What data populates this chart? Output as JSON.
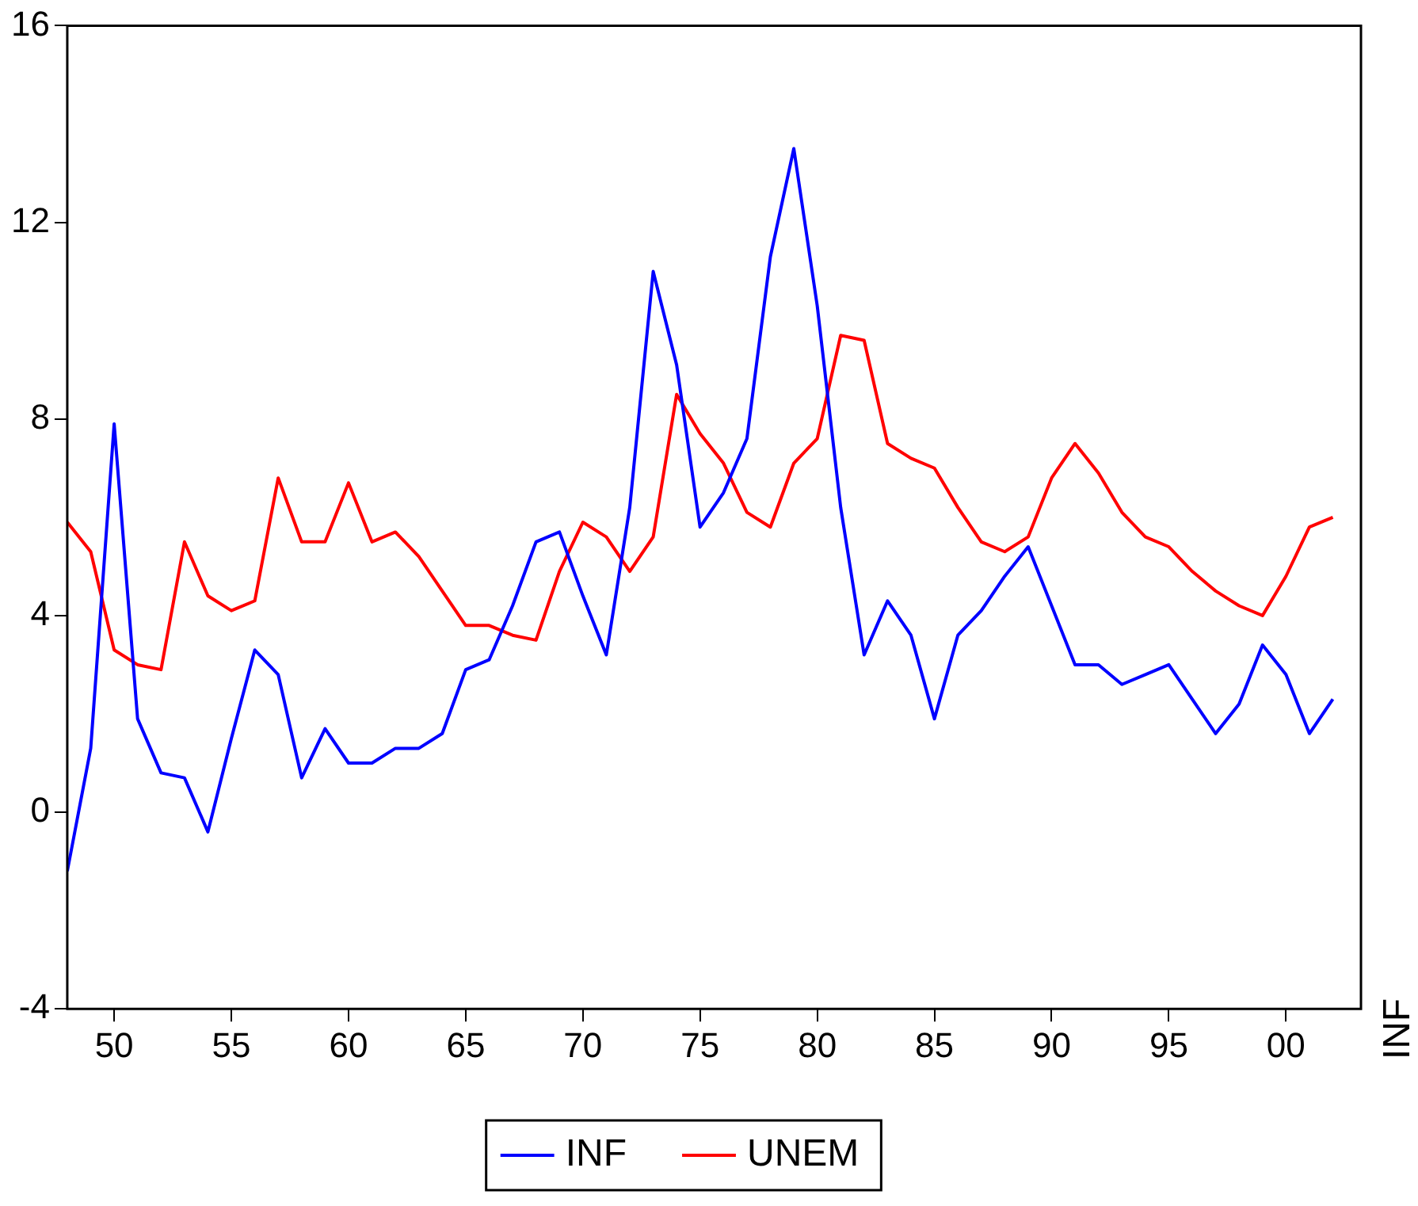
{
  "chart_data": {
    "type": "line",
    "ylabel": "INF",
    "x": [
      1948,
      1949,
      1950,
      1951,
      1952,
      1953,
      1954,
      1955,
      1956,
      1957,
      1958,
      1959,
      1960,
      1961,
      1962,
      1963,
      1964,
      1965,
      1966,
      1967,
      1968,
      1969,
      1970,
      1971,
      1972,
      1973,
      1974,
      1975,
      1976,
      1977,
      1978,
      1979,
      1980,
      1981,
      1982,
      1983,
      1984,
      1985,
      1986,
      1987,
      1988,
      1989,
      1990,
      1991,
      1992,
      1993,
      1994,
      1995,
      1996,
      1997,
      1998,
      1999,
      2000,
      2001,
      2002
    ],
    "series": [
      {
        "name": "INF",
        "color": "#0000ff",
        "values": [
          -1.2,
          1.3,
          7.9,
          1.9,
          0.8,
          0.7,
          -0.4,
          1.5,
          3.3,
          2.8,
          0.7,
          1.7,
          1.0,
          1.0,
          1.3,
          1.3,
          1.6,
          2.9,
          3.1,
          4.2,
          5.5,
          5.7,
          4.4,
          3.2,
          6.2,
          11.0,
          9.1,
          5.8,
          6.5,
          7.6,
          11.3,
          13.5,
          10.3,
          6.2,
          3.2,
          4.3,
          3.6,
          1.9,
          3.6,
          4.1,
          4.8,
          5.4,
          4.2,
          3.0,
          3.0,
          2.6,
          2.8,
          3.0,
          2.3,
          1.6,
          2.2,
          3.4,
          2.8,
          1.6,
          2.3
        ]
      },
      {
        "name": "UNEM",
        "color": "#ff0000",
        "values": [
          5.9,
          5.3,
          3.3,
          3.0,
          2.9,
          5.5,
          4.4,
          4.1,
          4.3,
          6.8,
          5.5,
          5.5,
          6.7,
          5.5,
          5.7,
          5.2,
          4.5,
          3.8,
          3.8,
          3.6,
          3.5,
          4.9,
          5.9,
          5.6,
          4.9,
          5.6,
          8.5,
          7.7,
          7.1,
          6.1,
          5.8,
          7.1,
          7.6,
          9.7,
          9.6,
          7.5,
          7.2,
          7.0,
          6.2,
          5.5,
          5.3,
          5.6,
          6.8,
          7.5,
          6.9,
          6.1,
          5.6,
          5.4,
          4.9,
          4.5,
          4.2,
          4.0,
          4.8,
          5.8,
          6.0
        ]
      }
    ],
    "xlim": [
      1948,
      2003.2
    ],
    "xticks": [
      {
        "value": 1950,
        "label": "50"
      },
      {
        "value": 1955,
        "label": "55"
      },
      {
        "value": 1960,
        "label": "60"
      },
      {
        "value": 1965,
        "label": "65"
      },
      {
        "value": 1970,
        "label": "70"
      },
      {
        "value": 1975,
        "label": "75"
      },
      {
        "value": 1980,
        "label": "80"
      },
      {
        "value": 1985,
        "label": "85"
      },
      {
        "value": 1990,
        "label": "90"
      },
      {
        "value": 1995,
        "label": "95"
      },
      {
        "value": 2000,
        "label": "00"
      }
    ],
    "ylim": [
      -4,
      16
    ],
    "yticks": [
      -4,
      0,
      4,
      8,
      12,
      16
    ],
    "grid": false,
    "legend": "bottom",
    "marker": "none",
    "line_style": "solid"
  }
}
